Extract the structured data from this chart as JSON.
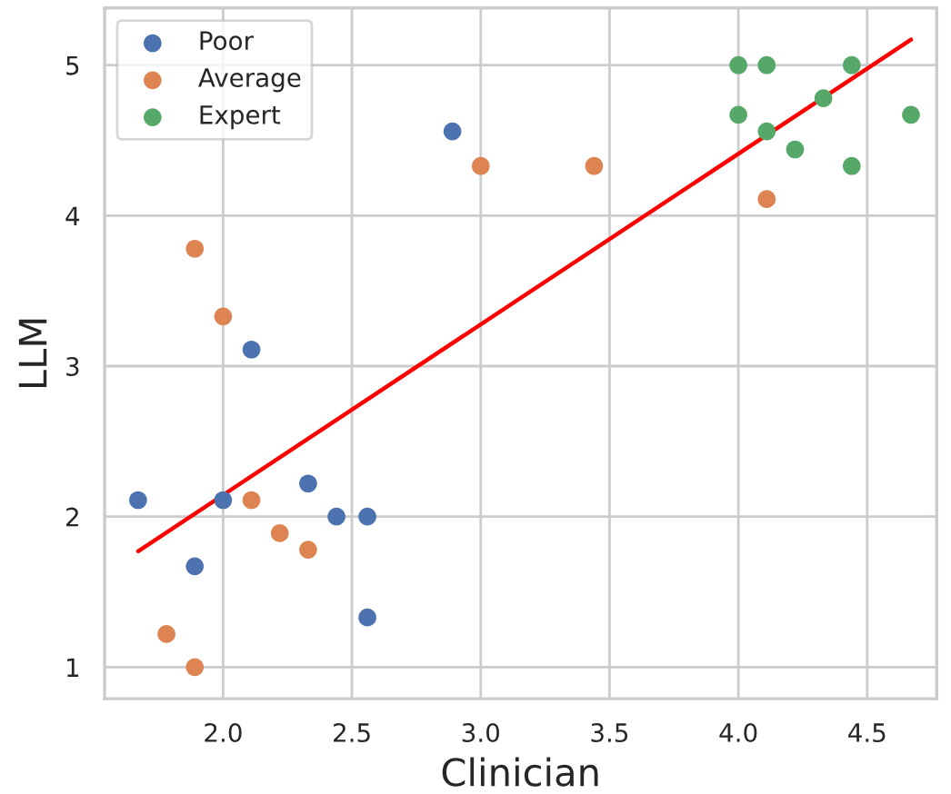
{
  "chart_data": {
    "type": "scatter",
    "xlabel": "Clinician",
    "ylabel": "LLM",
    "xlim": [
      1.54,
      4.77
    ],
    "ylim": [
      0.79,
      5.38
    ],
    "xticks": [
      {
        "value": 2.0,
        "label": "2.0"
      },
      {
        "value": 2.5,
        "label": "2.5"
      },
      {
        "value": 3.0,
        "label": "3.0"
      },
      {
        "value": 3.5,
        "label": "3.5"
      },
      {
        "value": 4.0,
        "label": "4.0"
      },
      {
        "value": 4.5,
        "label": "4.5"
      }
    ],
    "yticks": [
      1,
      2,
      3,
      4,
      5
    ],
    "grid": true,
    "legend": "top left",
    "marker": "circle",
    "series": [
      {
        "name": "Poor",
        "color": "#4c72b0",
        "x": [
          1.67,
          2.0,
          1.89,
          2.11,
          2.33,
          2.44,
          2.56,
          2.56,
          2.89
        ],
        "values": [
          2.11,
          2.11,
          1.67,
          3.11,
          2.22,
          2.0,
          2.0,
          1.33,
          4.56
        ]
      },
      {
        "name": "Average",
        "color": "#dd8452",
        "x": [
          1.89,
          2.0,
          2.11,
          2.22,
          2.33,
          1.78,
          1.89,
          3.0,
          3.44,
          4.11
        ],
        "values": [
          3.78,
          3.33,
          2.11,
          1.89,
          1.78,
          1.22,
          1.0,
          4.33,
          4.33,
          4.11
        ]
      },
      {
        "name": "Expert",
        "color": "#55a868",
        "x": [
          4.0,
          4.11,
          4.44,
          4.0,
          4.11,
          4.22,
          4.33,
          4.44,
          4.67
        ],
        "values": [
          5.0,
          5.0,
          5.0,
          4.67,
          4.56,
          4.44,
          4.78,
          4.33,
          4.67
        ]
      },
      {
        "type": "line",
        "color": "#ff0000",
        "line_style": "solid",
        "marker": "none",
        "x": [
          1.67,
          4.67
        ],
        "values": [
          1.77,
          5.17
        ]
      }
    ]
  }
}
